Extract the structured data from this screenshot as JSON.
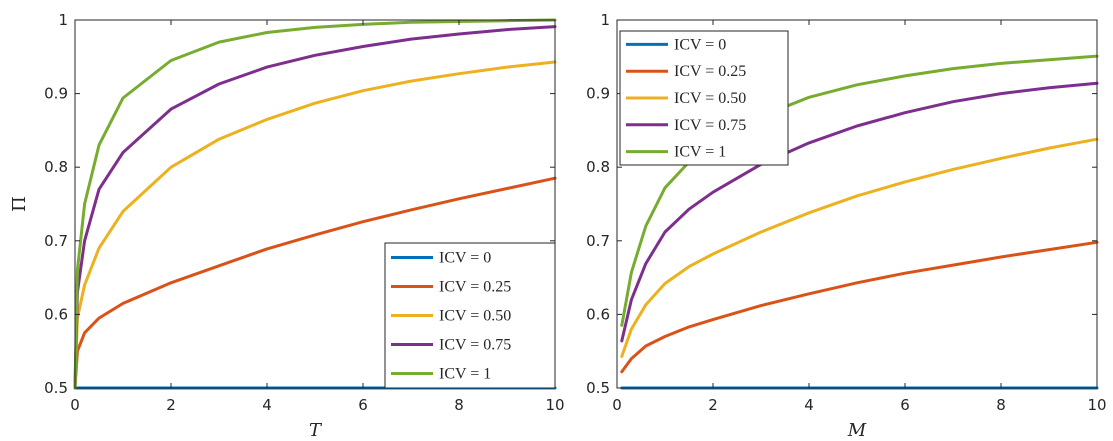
{
  "colors": {
    "series": [
      "#0072BD",
      "#D95319",
      "#EDB120",
      "#7E2F8E",
      "#77AC30"
    ],
    "axis": "#262626",
    "background": "#ffffff"
  },
  "chart_data": [
    {
      "type": "line",
      "xlabel": "T",
      "ylabel": "Π",
      "xlim": [
        0,
        10
      ],
      "ylim": [
        0.5,
        1
      ],
      "x_ticks": [
        "0",
        "2",
        "4",
        "6",
        "8",
        "10"
      ],
      "y_ticks": [
        "0.5",
        "0.6",
        "0.7",
        "0.8",
        "0.9",
        "1"
      ],
      "grid": false,
      "legend_position": "bottom-right",
      "x": [
        0,
        0.05,
        0.2,
        0.5,
        1,
        2,
        3,
        4,
        5,
        6,
        7,
        8,
        9,
        10
      ],
      "series": [
        {
          "name": "ICV = 0",
          "values": [
            0.5,
            0.5,
            0.5,
            0.5,
            0.5,
            0.5,
            0.5,
            0.5,
            0.5,
            0.5,
            0.5,
            0.5,
            0.5,
            0.5
          ]
        },
        {
          "name": "ICV = 0.25",
          "values": [
            0.5,
            0.55,
            0.575,
            0.595,
            0.615,
            0.643,
            0.666,
            0.689,
            0.708,
            0.726,
            0.742,
            0.757,
            0.771,
            0.785
          ]
        },
        {
          "name": "ICV = 0.50",
          "values": [
            0.5,
            0.595,
            0.64,
            0.69,
            0.74,
            0.8,
            0.838,
            0.865,
            0.887,
            0.904,
            0.917,
            0.927,
            0.936,
            0.943
          ]
        },
        {
          "name": "ICV = 0.75",
          "values": [
            0.5,
            0.63,
            0.7,
            0.77,
            0.82,
            0.879,
            0.913,
            0.936,
            0.952,
            0.964,
            0.974,
            0.981,
            0.987,
            0.991
          ]
        },
        {
          "name": "ICV = 1",
          "values": [
            0.5,
            0.66,
            0.75,
            0.83,
            0.894,
            0.945,
            0.97,
            0.983,
            0.99,
            0.994,
            0.997,
            0.998,
            0.999,
            1.0
          ]
        }
      ]
    },
    {
      "type": "line",
      "xlabel": "M",
      "ylabel": "",
      "xlim": [
        0,
        10
      ],
      "ylim": [
        0.5,
        1
      ],
      "x_ticks": [
        "0",
        "2",
        "4",
        "6",
        "8",
        "10"
      ],
      "y_ticks": [
        "0.5",
        "0.6",
        "0.7",
        "0.8",
        "0.9",
        "1"
      ],
      "grid": false,
      "legend_position": "top-left",
      "x": [
        0.1,
        0.3,
        0.6,
        1,
        1.5,
        2,
        3,
        4,
        5,
        6,
        7,
        8,
        9,
        10
      ],
      "series": [
        {
          "name": "ICV = 0",
          "values": [
            0.5,
            0.5,
            0.5,
            0.5,
            0.5,
            0.5,
            0.5,
            0.5,
            0.5,
            0.5,
            0.5,
            0.5,
            0.5,
            0.5
          ]
        },
        {
          "name": "ICV = 0.25",
          "values": [
            0.522,
            0.54,
            0.557,
            0.57,
            0.583,
            0.593,
            0.612,
            0.628,
            0.643,
            0.656,
            0.667,
            0.678,
            0.688,
            0.698
          ]
        },
        {
          "name": "ICV = 0.50",
          "values": [
            0.543,
            0.58,
            0.613,
            0.642,
            0.665,
            0.682,
            0.712,
            0.738,
            0.761,
            0.78,
            0.797,
            0.812,
            0.826,
            0.838
          ]
        },
        {
          "name": "ICV = 0.75",
          "values": [
            0.564,
            0.62,
            0.669,
            0.712,
            0.743,
            0.766,
            0.804,
            0.833,
            0.856,
            0.874,
            0.889,
            0.9,
            0.908,
            0.914
          ]
        },
        {
          "name": "ICV = 1",
          "values": [
            0.585,
            0.657,
            0.72,
            0.772,
            0.807,
            0.833,
            0.869,
            0.895,
            0.912,
            0.924,
            0.934,
            0.941,
            0.946,
            0.951
          ]
        }
      ]
    }
  ]
}
